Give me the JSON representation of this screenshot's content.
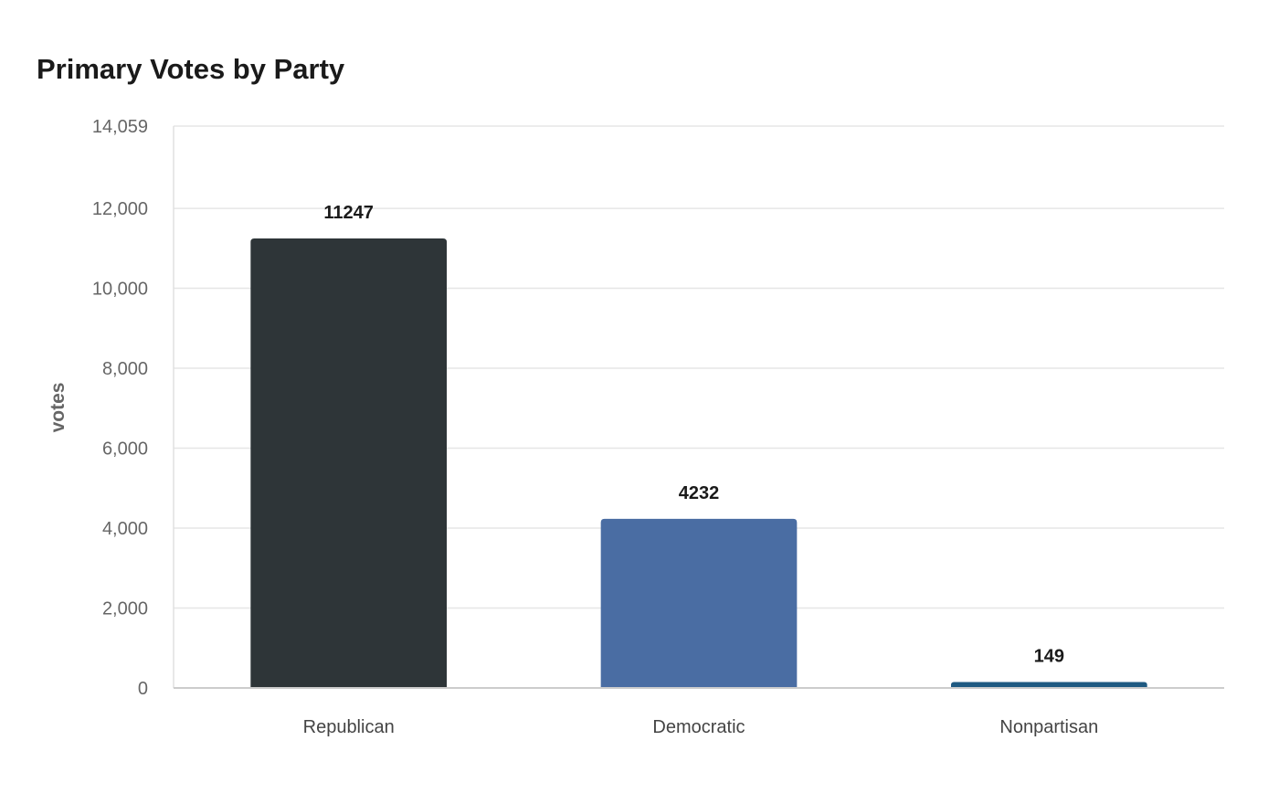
{
  "chart_data": {
    "type": "bar",
    "title": "Primary Votes by Party",
    "xlabel": "",
    "ylabel": "votes",
    "categories": [
      "Republican",
      "Democratic",
      "Nonpartisan"
    ],
    "values": [
      11247,
      4232,
      149
    ],
    "data_labels": [
      "11247",
      "4232",
      "149"
    ],
    "ylim": [
      0,
      14059
    ],
    "yticks": [
      0,
      2000,
      4000,
      6000,
      8000,
      10000,
      12000,
      14059
    ],
    "ytick_labels": [
      "0",
      "2,000",
      "4,000",
      "6,000",
      "8,000",
      "10,000",
      "12,000",
      "14,059"
    ],
    "colors": [
      "#2e3538",
      "#4a6da3",
      "#1f5a82"
    ],
    "grid": true,
    "legend": "none"
  }
}
